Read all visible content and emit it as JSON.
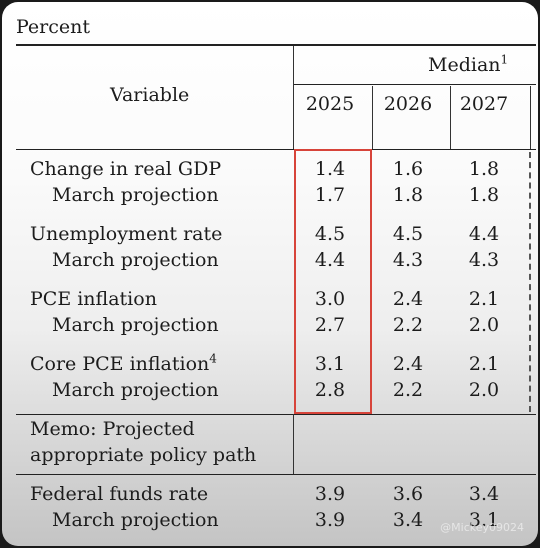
{
  "table": {
    "unit_label": "Percent",
    "variable_header": "Variable",
    "median_header": "Median",
    "median_note": "1",
    "years": [
      "2025",
      "2026",
      "2027"
    ],
    "rows": [
      {
        "label": "Change in real GDP",
        "note": "",
        "indent": false,
        "values": [
          "1.4",
          "1.6",
          "1.8"
        ]
      },
      {
        "label": "March projection",
        "note": "",
        "indent": true,
        "values": [
          "1.7",
          "1.8",
          "1.8"
        ]
      },
      {
        "label": "Unemployment rate",
        "note": "",
        "indent": false,
        "values": [
          "4.5",
          "4.5",
          "4.4"
        ]
      },
      {
        "label": "March projection",
        "note": "",
        "indent": true,
        "values": [
          "4.4",
          "4.3",
          "4.3"
        ]
      },
      {
        "label": "PCE inflation",
        "note": "",
        "indent": false,
        "values": [
          "3.0",
          "2.4",
          "2.1"
        ]
      },
      {
        "label": "March projection",
        "note": "",
        "indent": true,
        "values": [
          "2.7",
          "2.2",
          "2.0"
        ]
      },
      {
        "label": "Core PCE inflation",
        "note": "4",
        "indent": false,
        "values": [
          "3.1",
          "2.4",
          "2.1"
        ]
      },
      {
        "label": "March projection",
        "note": "",
        "indent": true,
        "values": [
          "2.8",
          "2.2",
          "2.0"
        ]
      }
    ],
    "memo_line1": "Memo: Projected",
    "memo_line2": "appropriate policy path",
    "memo_rows": [
      {
        "label": "Federal funds rate",
        "indent": false,
        "values": [
          "3.9",
          "3.6",
          "3.4"
        ]
      },
      {
        "label": "March projection",
        "indent": true,
        "values": [
          "3.9",
          "3.4",
          "3.1"
        ]
      }
    ]
  },
  "watermark": "@Mickey09024",
  "highlight_color": "#d7443a"
}
